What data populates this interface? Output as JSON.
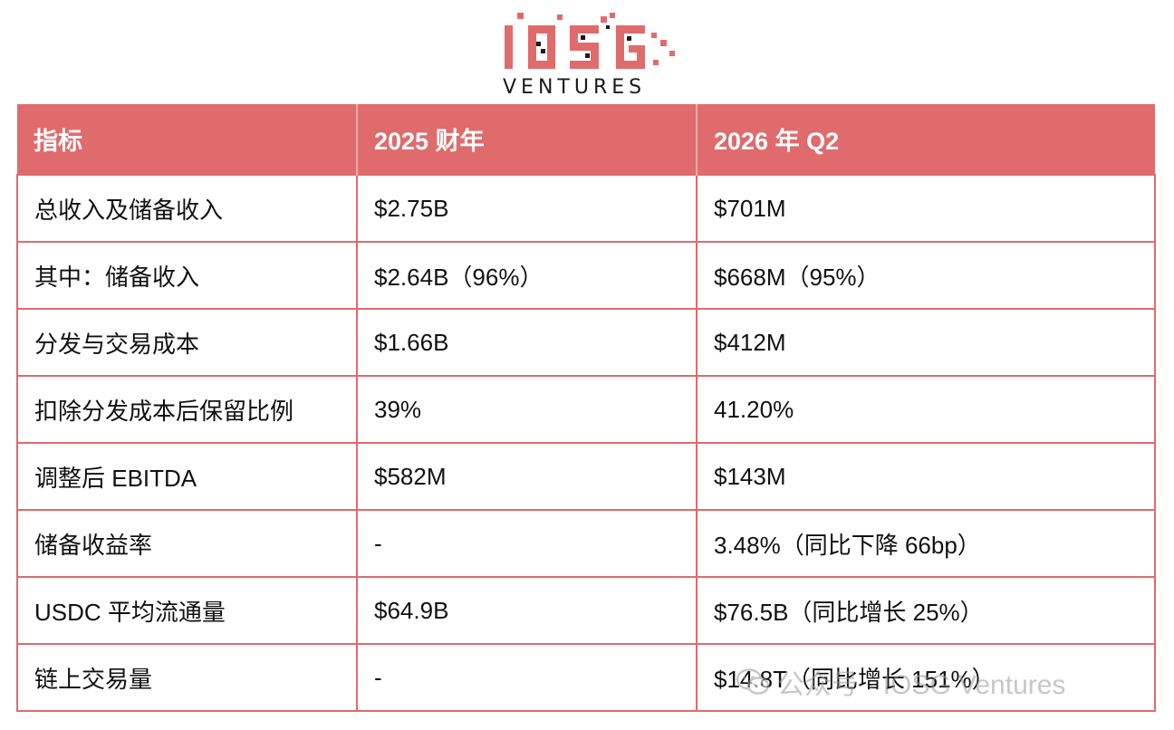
{
  "logo": {
    "mark": "IOSG",
    "word": "VENTURES",
    "color": "#e06b6c"
  },
  "table": {
    "headers": [
      "指标",
      "2025 财年",
      "2026 年 Q2"
    ],
    "rows": [
      [
        "总收入及储备收入",
        "$2.75B",
        "$701M"
      ],
      [
        "其中：储备收入",
        "$2.64B（96%）",
        "$668M（95%）"
      ],
      [
        "分发与交易成本",
        "$1.66B",
        "$412M"
      ],
      [
        "扣除分发成本后保留比例",
        "39%",
        "41.20%"
      ],
      [
        "调整后 EBITDA",
        "$582M",
        "$143M"
      ],
      [
        "储备收益率",
        "-",
        "3.48%（同比下降 66bp）"
      ],
      [
        "USDC 平均流通量",
        "$64.9B",
        "$76.5B（同比增长 25%）"
      ],
      [
        "链上交易量",
        "-",
        "$14.8T（同比增长 151%）"
      ]
    ]
  },
  "watermark": {
    "text": "公众号 · IOSG Ventures",
    "icon": "wechat-icon"
  },
  "colors": {
    "accent": "#e06b6c"
  }
}
